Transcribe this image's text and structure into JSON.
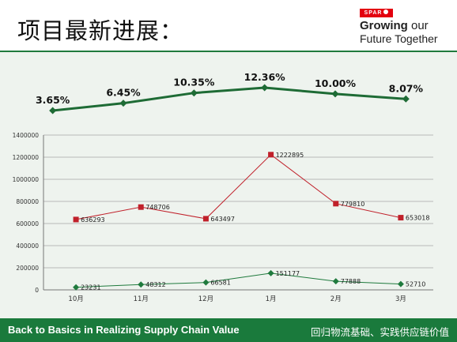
{
  "slide": {
    "title": "项目最新进展：",
    "brand_mark": "SPAR",
    "brand_line1_bold": "Growing",
    "brand_line1_rest": " our",
    "brand_line2": "Future Together",
    "footer_left": "Back to Basics in Realizing Supply Chain Value",
    "footer_right": "回归物流基础、实践供应链价值"
  },
  "colors": {
    "brand_green": "#1a7a3c",
    "brand_red": "#e3000f",
    "pct_line": "#1e6b35",
    "red_series": "#c0202a",
    "green_series": "#1f7a3d"
  },
  "chart_data": [
    {
      "type": "line",
      "categories": [
        "10月",
        "11月",
        "12月",
        "1月",
        "2月",
        "3月"
      ],
      "values": [
        3.65,
        6.45,
        10.35,
        12.36,
        10.0,
        8.07
      ],
      "labels": [
        "3.65%",
        "6.45%",
        "10.35%",
        "12.36%",
        "10.00%",
        "8.07%"
      ],
      "marker": "diamond",
      "axes_shown": false
    },
    {
      "type": "line",
      "categories": [
        "10月",
        "11月",
        "12月",
        "1月",
        "2月",
        "3月"
      ],
      "ylim": [
        0,
        1400000
      ],
      "yticks": [
        0,
        200000,
        400000,
        600000,
        800000,
        1000000,
        1200000,
        1400000
      ],
      "grid": true,
      "legend": "none",
      "series": [
        {
          "values": [
            636293,
            748706,
            643497,
            1222895,
            779810,
            653018
          ],
          "marker": "square",
          "color": "#c0202a"
        },
        {
          "values": [
            23231,
            48312,
            66581,
            151177,
            77888,
            52710
          ],
          "marker": "diamond",
          "color": "#1f7a3d"
        }
      ]
    }
  ]
}
